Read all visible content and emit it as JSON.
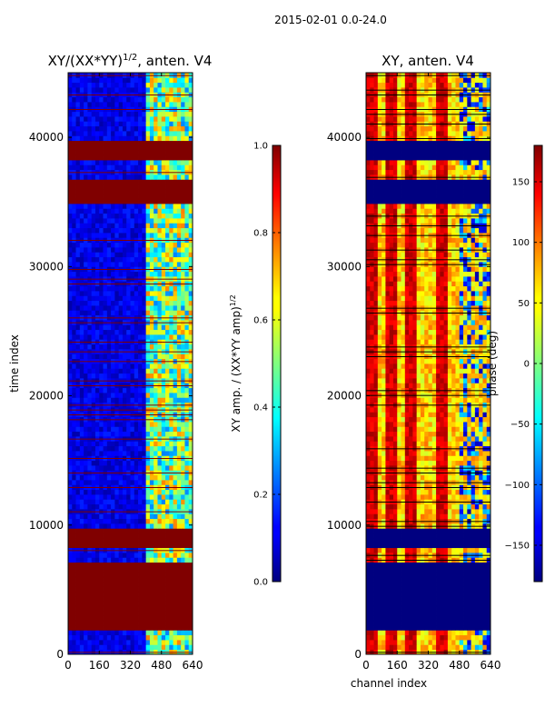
{
  "suptitle": "2015-02-01 0.0-24.0",
  "chart_data": [
    {
      "type": "heatmap",
      "title": "XY/(XX*YY)",
      "title_exponent": "1/2",
      "title_suffix": ", anten. V4",
      "xlabel": "",
      "ylabel": "time index",
      "xlim": [
        0,
        640
      ],
      "ylim": [
        0,
        45000
      ],
      "x_ticks": [
        "0",
        "160",
        "320",
        "480",
        "640"
      ],
      "y_ticks": [
        "0",
        "10000",
        "20000",
        "30000",
        "40000"
      ],
      "colorbar": {
        "label": "XY amp. / (XX*YY amp)",
        "label_exponent": "1/2",
        "range": [
          0.0,
          1.0
        ],
        "ticks": [
          "0.0",
          "0.2",
          "0.4",
          "0.6",
          "0.8",
          "1.0"
        ],
        "colormap": "jet"
      },
      "saturated_row_bands": [
        [
          1800,
          7200
        ],
        [
          8400,
          9900
        ],
        [
          34800,
          36900
        ],
        [
          38200,
          39900
        ]
      ],
      "active_channel_bands": [
        [
          400,
          640
        ]
      ],
      "background_level": 0.1,
      "active_level": 0.5
    },
    {
      "type": "heatmap",
      "title": "XY, anten. V4",
      "xlabel": "channel index",
      "ylabel": "",
      "xlim": [
        0,
        640
      ],
      "ylim": [
        0,
        45000
      ],
      "x_ticks": [
        "0",
        "160",
        "320",
        "480",
        "640"
      ],
      "y_ticks": [
        "0",
        "10000",
        "20000",
        "30000",
        "40000"
      ],
      "colorbar": {
        "label": "phase (deg)",
        "range": [
          -180,
          180
        ],
        "ticks": [
          "-150",
          "-100",
          "-50",
          "0",
          "50",
          "100",
          "150"
        ],
        "colormap": "jet"
      },
      "blank_row_bands": [
        [
          1800,
          7200
        ],
        [
          8400,
          9900
        ],
        [
          34800,
          36900
        ],
        [
          38200,
          39900
        ]
      ],
      "stripe_channels": [
        30,
        130,
        230,
        390
      ],
      "stripe_width": 50,
      "background_phase": 60
    }
  ],
  "colors": {
    "jet_max": "#800000",
    "jet_min": "#000080"
  }
}
